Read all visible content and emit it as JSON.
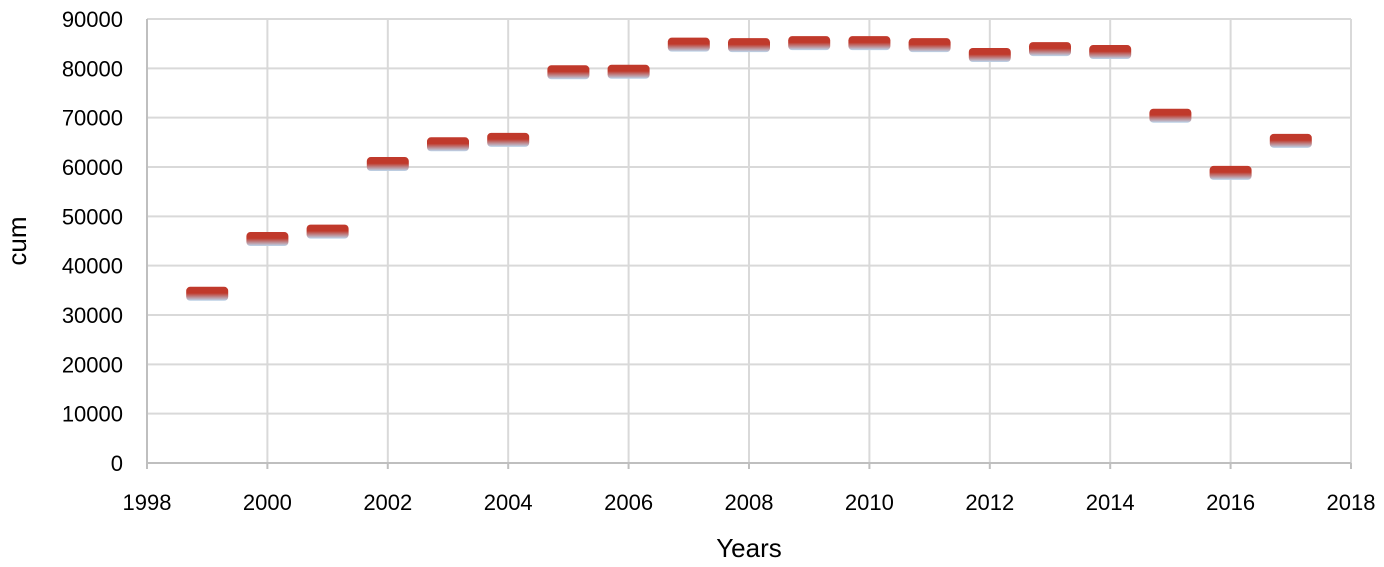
{
  "chart_data": {
    "type": "scatter",
    "title": "",
    "xlabel": "Years",
    "ylabel": "cum",
    "xlim": [
      1998,
      2018
    ],
    "ylim": [
      0,
      90000
    ],
    "xticks": [
      1998,
      2000,
      2002,
      2004,
      2006,
      2008,
      2010,
      2012,
      2014,
      2016,
      2018
    ],
    "yticks": [
      0,
      10000,
      20000,
      30000,
      40000,
      50000,
      60000,
      70000,
      80000,
      90000
    ],
    "xtick_labels": [
      "1998",
      "2000",
      "2002",
      "2004",
      "2006",
      "2008",
      "2010",
      "2012",
      "2014",
      "2016",
      "2018"
    ],
    "ytick_labels": [
      "0",
      "10000",
      "20000",
      "30000",
      "40000",
      "50000",
      "60000",
      "70000",
      "80000",
      "90000"
    ],
    "grid": true,
    "marker": "dash",
    "colors": {
      "marker_top": "#c0392b",
      "marker_bottom": "#bcd7ee",
      "grid": "#d9d9d9",
      "axis": "#bfbfbf"
    },
    "series": [
      {
        "x": [
          1999,
          2000,
          2001,
          2002,
          2003,
          2004,
          2005,
          2006,
          2007,
          2008,
          2009,
          2010,
          2011,
          2012,
          2013,
          2014,
          2015,
          2016,
          2017
        ],
        "y": [
          34300,
          45400,
          46900,
          60600,
          64600,
          65500,
          79200,
          79300,
          84800,
          84700,
          85100,
          85100,
          84700,
          82700,
          83900,
          83300,
          70400,
          58800,
          65300
        ]
      }
    ]
  }
}
